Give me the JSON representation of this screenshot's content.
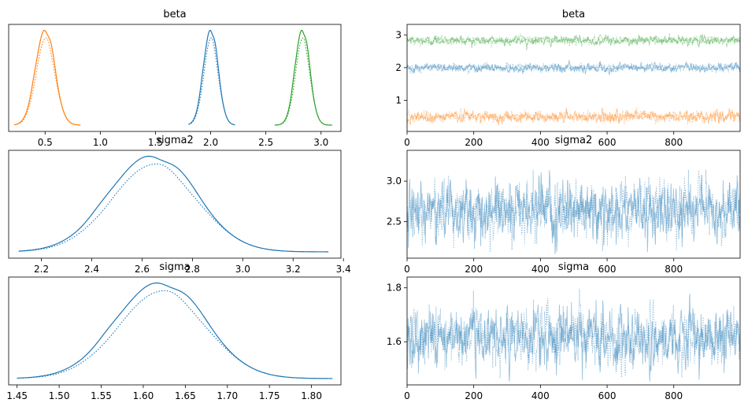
{
  "chart_data": [
    {
      "type": "line",
      "title": "beta",
      "x_ticks": [
        0.5,
        1.0,
        1.5,
        2.0,
        2.5,
        3.0
      ],
      "x_tick_labels": [
        "0.5",
        "1.0",
        "1.5",
        "2.0",
        "2.5",
        "3.0"
      ],
      "xlim": [
        0.17,
        3.18
      ],
      "y_ticks": [],
      "y_tick_labels": [],
      "series": [
        {
          "color": "#ff7f0e",
          "kind": "density",
          "mean": 0.5,
          "sd": 0.085,
          "xmin": 0.22,
          "xmax": 0.82
        },
        {
          "color": "#1f77b4",
          "kind": "density",
          "mean": 2.0,
          "sd": 0.065,
          "xmin": 1.8,
          "xmax": 2.22
        },
        {
          "color": "#2ca02c",
          "kind": "density",
          "mean": 2.83,
          "sd": 0.065,
          "xmin": 2.58,
          "xmax": 3.1
        }
      ]
    },
    {
      "type": "line",
      "title": "beta",
      "x_ticks": [
        0,
        200,
        400,
        600,
        800
      ],
      "x_tick_labels": [
        "0",
        "200",
        "400",
        "600",
        "800"
      ],
      "xlim": [
        0,
        999
      ],
      "y_ticks": [
        1,
        2,
        3
      ],
      "y_tick_labels": [
        "1",
        "2",
        "3"
      ],
      "ylim": [
        0.05,
        3.32
      ],
      "series": [
        {
          "color": "#2ca02c",
          "kind": "trace",
          "mean": 2.83,
          "sd": 0.065
        },
        {
          "color": "#1f77b4",
          "kind": "trace",
          "mean": 2.0,
          "sd": 0.065
        },
        {
          "color": "#ff7f0e",
          "kind": "trace",
          "mean": 0.5,
          "sd": 0.085
        }
      ]
    },
    {
      "type": "line",
      "title": "sigma2",
      "x_ticks": [
        2.2,
        2.4,
        2.6,
        2.8,
        3.0,
        3.2,
        3.4
      ],
      "x_tick_labels": [
        "2.2",
        "2.4",
        "2.6",
        "2.8",
        "3.0",
        "3.2",
        "3.4"
      ],
      "xlim": [
        2.07,
        3.39
      ],
      "y_ticks": [],
      "y_tick_labels": [],
      "series": [
        {
          "color": "#1f77b4",
          "kind": "density",
          "mean": 2.64,
          "sd": 0.17,
          "xmin": 2.11,
          "xmax": 3.34
        }
      ]
    },
    {
      "type": "line",
      "title": "sigma2",
      "x_ticks": [
        0,
        200,
        400,
        600,
        800
      ],
      "x_tick_labels": [
        "0",
        "200",
        "400",
        "600",
        "800"
      ],
      "xlim": [
        0,
        999
      ],
      "y_ticks": [
        2.5,
        3.0
      ],
      "y_tick_labels": [
        "2.5",
        "3.0"
      ],
      "ylim": [
        2.05,
        3.38
      ],
      "series": [
        {
          "color": "#1f77b4",
          "kind": "trace",
          "mean": 2.64,
          "sd": 0.17,
          "min": 2.1,
          "max": 3.33
        }
      ]
    },
    {
      "type": "line",
      "title": "sigma",
      "x_ticks": [
        1.45,
        1.5,
        1.55,
        1.6,
        1.65,
        1.7,
        1.75,
        1.8
      ],
      "x_tick_labels": [
        "1.45",
        "1.50",
        "1.55",
        "1.60",
        "1.65",
        "1.70",
        "1.75",
        "1.80"
      ],
      "xlim": [
        1.44,
        1.835
      ],
      "y_ticks": [],
      "y_tick_labels": [],
      "series": [
        {
          "color": "#1f77b4",
          "kind": "density",
          "mean": 1.62,
          "sd": 0.052,
          "xmin": 1.45,
          "xmax": 1.825
        }
      ]
    },
    {
      "type": "line",
      "title": "sigma",
      "x_ticks": [
        0,
        200,
        400,
        600,
        800
      ],
      "x_tick_labels": [
        "0",
        "200",
        "400",
        "600",
        "800"
      ],
      "xlim": [
        0,
        999
      ],
      "y_ticks": [
        1.6,
        1.8
      ],
      "y_tick_labels": [
        "1.6",
        "1.8"
      ],
      "ylim": [
        1.44,
        1.84
      ],
      "series": [
        {
          "color": "#1f77b4",
          "kind": "trace",
          "mean": 1.62,
          "sd": 0.052,
          "min": 1.45,
          "max": 1.82
        }
      ]
    }
  ]
}
